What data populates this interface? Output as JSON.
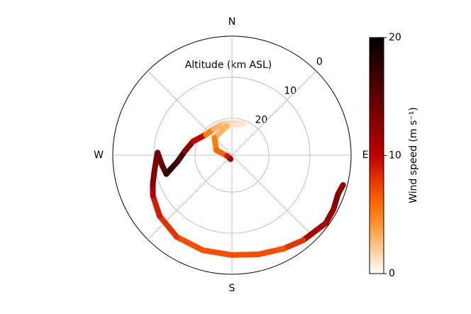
{
  "chart_data": {
    "type": "polar_trajectory",
    "title": "Altitude (km ASL)",
    "colorbar_label": "Wind speed (m s⁻¹)",
    "direction": [
      105,
      110,
      118,
      126,
      140,
      151,
      165,
      180,
      197,
      214,
      230,
      243,
      250,
      259,
      266,
      272,
      262,
      254,
      258,
      263,
      275,
      290,
      308,
      325,
      345,
      20,
      350,
      315,
      288,
      262,
      200
    ],
    "altitude": [
      1.0,
      1.5,
      1.0,
      0.8,
      2.0,
      3.0,
      4.0,
      4.7,
      4.8,
      5.0,
      6.0,
      7.4,
      8.5,
      9.8,
      10.5,
      10.9,
      11.8,
      12.4,
      14.0,
      15.6,
      17.5,
      19.0,
      20.9,
      21.2,
      21.0,
      20.8,
      21.8,
      23.0,
      25.0,
      27.8,
      28.0
    ],
    "wind_speed": [
      12,
      13,
      12,
      11,
      8,
      7,
      7,
      7,
      7,
      8,
      9,
      11,
      13,
      13,
      14,
      14,
      15,
      18,
      18,
      16,
      13,
      10,
      5,
      3,
      2,
      1,
      3,
      5,
      6,
      9,
      12
    ],
    "xticks": [
      {
        "value": 0,
        "label": "N"
      },
      {
        "value": 45,
        "label": null
      },
      {
        "value": 90,
        "label": "E"
      },
      {
        "value": 135,
        "label": null
      },
      {
        "value": 180,
        "label": "S"
      },
      {
        "value": 225,
        "label": null
      },
      {
        "value": 270,
        "label": "W"
      },
      {
        "value": 315,
        "label": null
      }
    ],
    "ylim": [
      29,
      0
    ],
    "yticks": [
      0,
      10,
      20
    ],
    "clim": [
      0,
      20
    ],
    "cticks": [
      0,
      10,
      20
    ],
    "colormap": "gist_heat_r",
    "grid": true
  }
}
